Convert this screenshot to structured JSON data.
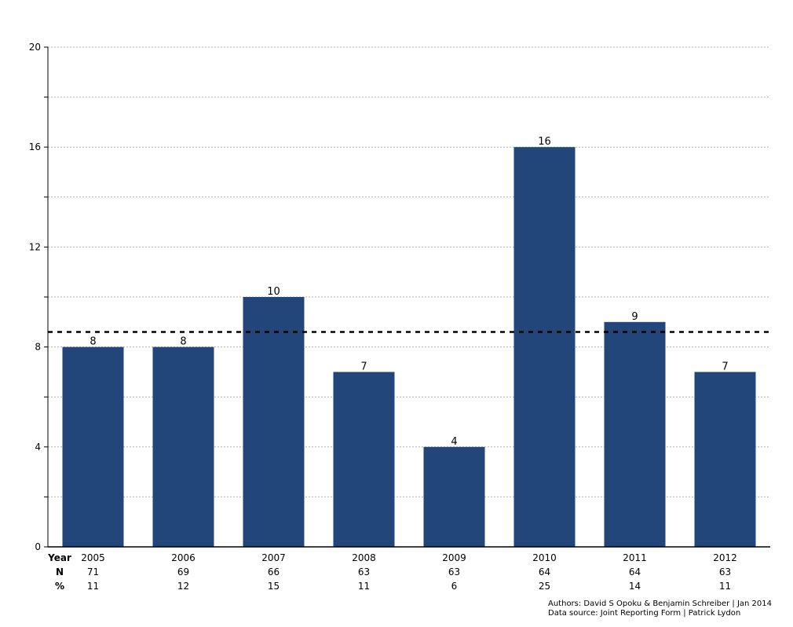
{
  "chart_data": {
    "type": "bar",
    "title": "",
    "xlabel": "",
    "ylabel": "",
    "categories": [
      "2005",
      "2006",
      "2007",
      "2008",
      "2009",
      "2010",
      "2011",
      "2012"
    ],
    "values": [
      8,
      8,
      10,
      7,
      4,
      16,
      9,
      7
    ],
    "data_labels": [
      "8",
      "8",
      "10",
      "7",
      "4",
      "16",
      "9",
      "7"
    ],
    "ylim": [
      0,
      20
    ],
    "y_ticks": [
      0,
      2,
      4,
      6,
      8,
      10,
      12,
      14,
      16,
      18,
      20
    ],
    "y_tick_labels": [
      "0",
      "",
      "4",
      "",
      "8",
      "",
      "12",
      "",
      "16",
      "",
      "20"
    ],
    "reference_line": 8.6,
    "grid": true,
    "bar_color": "#22457a",
    "table": {
      "rows": [
        {
          "label": "Year",
          "values": [
            "2005",
            "2006",
            "2007",
            "2008",
            "2009",
            "2010",
            "2011",
            "2012"
          ]
        },
        {
          "label": "N",
          "values": [
            "71",
            "69",
            "66",
            "63",
            "63",
            "64",
            "64",
            "63"
          ]
        },
        {
          "label": "%",
          "values": [
            "11",
            "12",
            "15",
            "11",
            "6",
            "25",
            "14",
            "11"
          ]
        }
      ]
    }
  },
  "footer": {
    "authors": "Authors: David S Opoku & Benjamin Schreiber | Jan 2014",
    "source": "Data source: Joint Reporting Form | Patrick Lydon"
  }
}
